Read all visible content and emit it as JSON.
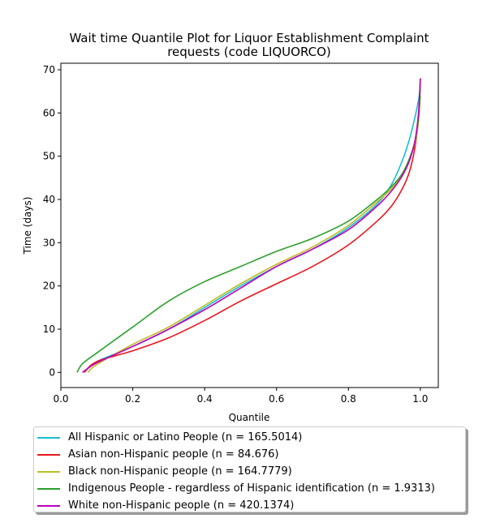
{
  "chart_data": {
    "type": "line",
    "title_line1": "Wait time Quantile Plot for Liquor Establishment Complaint",
    "title_line2": "requests (code LIQUORCO)",
    "xlabel": "Quantile",
    "ylabel": "Time (days)",
    "xlim": [
      0.0,
      1.05
    ],
    "ylim": [
      -3.5,
      71.5
    ],
    "xticks": [
      "0.0",
      "0.2",
      "0.4",
      "0.6",
      "0.8",
      "1.0"
    ],
    "yticks": [
      "0",
      "10",
      "20",
      "30",
      "40",
      "50",
      "60",
      "70"
    ],
    "grid": false,
    "legend_placement": "below",
    "series": [
      {
        "name": "All Hispanic or Latino People (n = 165.5014)",
        "color": "#17becf",
        "x": [
          0.065,
          0.1,
          0.2,
          0.3,
          0.4,
          0.5,
          0.6,
          0.7,
          0.8,
          0.88,
          0.92,
          0.95,
          0.97,
          0.985,
          0.995,
          1.0
        ],
        "y": [
          0,
          2.5,
          6.0,
          10.0,
          15.0,
          20.0,
          24.5,
          28.5,
          33.5,
          39.0,
          43.5,
          49.0,
          54.0,
          59.0,
          63.0,
          66.0
        ]
      },
      {
        "name": "Asian non-Hispanic people (n = 84.676)",
        "color": "#e8161d",
        "x": [
          0.065,
          0.1,
          0.2,
          0.3,
          0.4,
          0.5,
          0.6,
          0.7,
          0.8,
          0.88,
          0.92,
          0.95,
          0.97,
          0.985,
          0.995,
          1.0
        ],
        "y": [
          0,
          2.5,
          5.0,
          8.0,
          12.0,
          16.5,
          20.5,
          24.5,
          29.5,
          35.0,
          38.5,
          42.5,
          46.5,
          52.0,
          59.0,
          68.0
        ]
      },
      {
        "name": "Black non-Hispanic people (n = 164.7779)",
        "color": "#bcbd22",
        "x": [
          0.075,
          0.1,
          0.2,
          0.3,
          0.4,
          0.5,
          0.6,
          0.7,
          0.8,
          0.88,
          0.92,
          0.95,
          0.97,
          0.985,
          0.995,
          1.0
        ],
        "y": [
          0,
          1.8,
          6.5,
          10.5,
          15.5,
          20.5,
          25.0,
          29.0,
          34.0,
          39.5,
          42.5,
          46.0,
          49.5,
          53.0,
          58.0,
          64.0
        ]
      },
      {
        "name": "Indigenous People - regardless of Hispanic identification (n = 1.9313)",
        "color": "#2ca02c",
        "x": [
          0.045,
          0.06,
          0.1,
          0.2,
          0.3,
          0.4,
          0.5,
          0.6,
          0.7,
          0.8,
          0.88,
          0.92,
          0.95,
          0.97,
          0.985,
          0.995,
          1.0
        ],
        "y": [
          0,
          2.0,
          4.5,
          10.5,
          16.5,
          21.0,
          24.5,
          28.0,
          31.0,
          35.0,
          40.0,
          43.0,
          46.0,
          49.5,
          53.5,
          59.0,
          66.0
        ]
      },
      {
        "name": "White non-Hispanic people (n = 420.1374)",
        "color": "#bf00bf",
        "x": [
          0.06,
          0.1,
          0.2,
          0.3,
          0.4,
          0.5,
          0.6,
          0.7,
          0.8,
          0.88,
          0.92,
          0.95,
          0.97,
          0.985,
          0.995,
          1.0
        ],
        "y": [
          0,
          2.2,
          6.0,
          10.0,
          14.5,
          19.5,
          24.5,
          28.5,
          33.0,
          38.5,
          42.0,
          45.5,
          49.0,
          53.5,
          60.0,
          68.0
        ]
      }
    ]
  }
}
